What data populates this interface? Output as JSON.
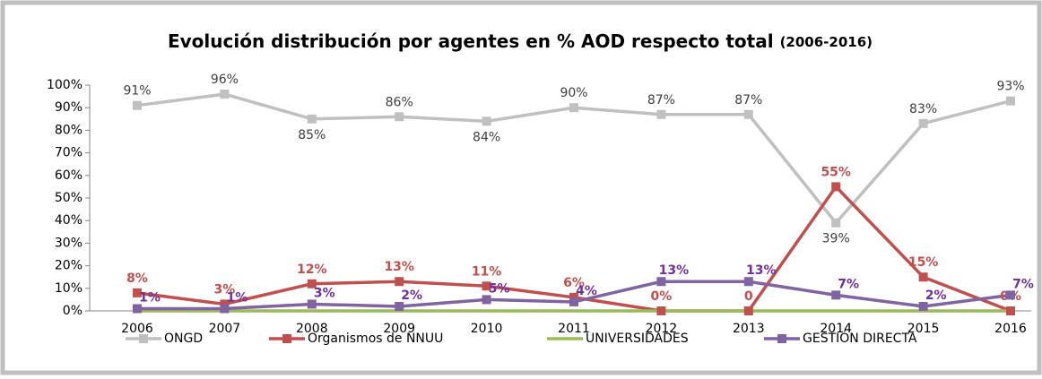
{
  "chart_data": {
    "type": "line",
    "title": "Evolución distribución por agentes en %  AOD respecto total",
    "subtitle": "(2006-2016)",
    "categories": [
      "2006",
      "2007",
      "2008",
      "2009",
      "2010",
      "2011",
      "2012",
      "2013",
      "2014",
      "2015",
      "2016"
    ],
    "ylim": [
      0,
      100
    ],
    "yticks": [
      {
        "value": 0,
        "label": "0%"
      },
      {
        "value": 10,
        "label": "10%"
      },
      {
        "value": 20,
        "label": "20%"
      },
      {
        "value": 30,
        "label": "30%"
      },
      {
        "value": 40,
        "label": "40%"
      },
      {
        "value": 50,
        "label": "50%"
      },
      {
        "value": 60,
        "label": "60%"
      },
      {
        "value": 70,
        "label": "70%"
      },
      {
        "value": 80,
        "label": "80%"
      },
      {
        "value": 90,
        "label": "90%"
      },
      {
        "value": 100,
        "label": "100%"
      }
    ],
    "grid": false,
    "legend": "bottom",
    "series": [
      {
        "name": "ONGD",
        "color": "#c0c0c0",
        "marker": "square",
        "label_color": "#404040",
        "values": [
          91,
          96,
          85,
          86,
          84,
          90,
          87,
          87,
          39,
          83,
          93
        ],
        "value_labels": [
          "91%",
          "96%",
          "85%",
          "86%",
          "84%",
          "90%",
          "87%",
          "87%",
          "39%",
          "83%",
          "93%"
        ]
      },
      {
        "name": "Organismos de NNUU",
        "color": "#c0504d",
        "marker": "square",
        "label_color": "#c0504d",
        "values": [
          8,
          3,
          12,
          13,
          11,
          6,
          0,
          0,
          55,
          15,
          0
        ],
        "value_labels": [
          "8%",
          "3%",
          "12%",
          "13%",
          "11%",
          "6%",
          "0%",
          "0",
          "55%",
          "15%",
          "0%"
        ]
      },
      {
        "name": "UNIVERSIDADES",
        "color": "#9bbb59",
        "marker": "none",
        "values": [
          0,
          0,
          0,
          0,
          0,
          0,
          0,
          0,
          0,
          0,
          0
        ]
      },
      {
        "name": "GESTIÓN DIRECTA",
        "color": "#8064a2",
        "marker": "square",
        "label_color": "#7030a0",
        "values": [
          1,
          1,
          3,
          2,
          5,
          4,
          13,
          13,
          7,
          2,
          7
        ],
        "value_labels": [
          "1%",
          "1%",
          "3%",
          "2%",
          "5%",
          "4%",
          "13%",
          "13%",
          "7%",
          "2%",
          "7%"
        ]
      }
    ]
  }
}
